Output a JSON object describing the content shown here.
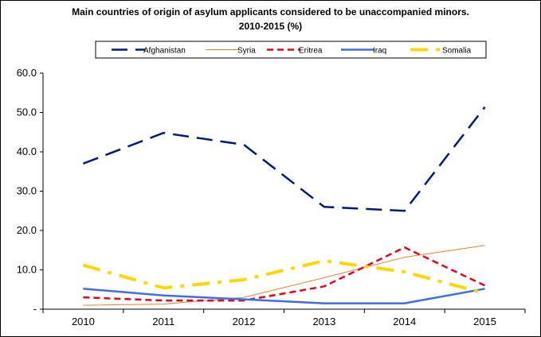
{
  "chart_data": {
    "type": "line",
    "title": "Main countries of origin of asylum applicants considered to be unaccompanied minors.",
    "subtitle": "2010-2015 (%)",
    "xlabel": "",
    "ylabel": "",
    "categories": [
      "2010",
      "2011",
      "2012",
      "2013",
      "2014",
      "2015"
    ],
    "ylim": [
      0,
      60
    ],
    "yticks": [
      "60.0",
      "50.0",
      "40.0",
      "30.0",
      "20.0",
      "10.0",
      "-"
    ],
    "ytick_values": [
      60,
      50,
      40,
      30,
      20,
      10,
      0
    ],
    "legend_position": "top",
    "grid": false,
    "series": [
      {
        "name": "Afghanistan",
        "values": [
          37.0,
          44.8,
          41.8,
          26.0,
          25.0,
          51.4
        ],
        "color": "#001a80",
        "dash": "long-dash",
        "width": 2.5
      },
      {
        "name": "Syria",
        "values": [
          1.0,
          1.3,
          3.0,
          8.0,
          13.2,
          16.2
        ],
        "color": "#e6822a",
        "dash": "solid",
        "width": 1
      },
      {
        "name": "Eritrea",
        "values": [
          3.0,
          2.2,
          2.2,
          5.8,
          15.7,
          6.0
        ],
        "color": "#e8001a",
        "dash": "dash",
        "width": 2.5
      },
      {
        "name": "Iraq",
        "values": [
          5.2,
          3.5,
          2.5,
          1.5,
          1.5,
          5.2
        ],
        "color": "#3a6fe8",
        "dash": "solid",
        "width": 2.5
      },
      {
        "name": "Somalia",
        "values": [
          11.2,
          5.4,
          7.5,
          12.3,
          9.5,
          4.0
        ],
        "color": "#ffd700",
        "dash": "dash-dot",
        "width": 4
      }
    ]
  }
}
